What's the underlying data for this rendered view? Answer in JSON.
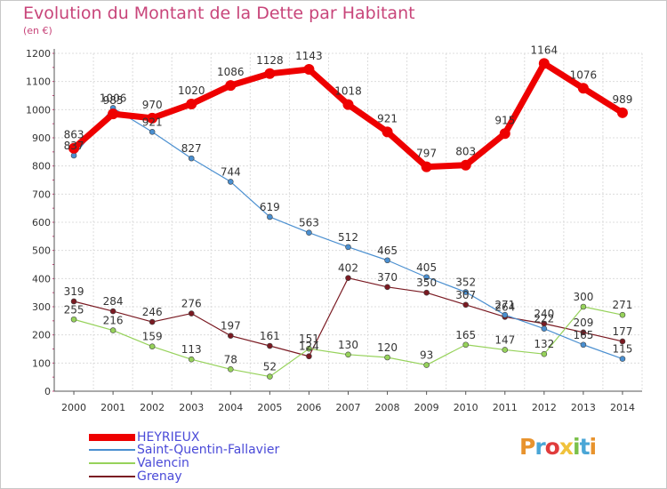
{
  "header": {
    "title": "Evolution du Montant de la Dette par Habitant",
    "subtitle": "(en €)"
  },
  "logo": {
    "text": "Proxiti",
    "colors": [
      "#e8932d",
      "#4aa6d6",
      "#e03c3c",
      "#f0c23b",
      "#7bc04a",
      "#4aa6d6",
      "#e8932d"
    ]
  },
  "chart_data": {
    "type": "line",
    "x": [
      "2000",
      "2001",
      "2002",
      "2003",
      "2004",
      "2005",
      "2006",
      "2007",
      "2008",
      "2009",
      "2010",
      "2011",
      "2012",
      "2013",
      "2014"
    ],
    "yticks": [
      "0",
      "100",
      "200",
      "300",
      "400",
      "500",
      "600",
      "700",
      "800",
      "900",
      "1000",
      "1100",
      "1200"
    ],
    "ylim": [
      0,
      1200
    ],
    "grid": true,
    "legend_position": "bottom-left",
    "series": [
      {
        "name": "Grenay",
        "color": "#7a1a22",
        "values": [
          319,
          284,
          246,
          276,
          197,
          161,
          124,
          402,
          370,
          350,
          307,
          264,
          240,
          209,
          177
        ]
      },
      {
        "name": "Valencin",
        "color": "#96d25a",
        "values": [
          255,
          216,
          159,
          113,
          78,
          52,
          151,
          130,
          120,
          93,
          165,
          147,
          132,
          300,
          271
        ]
      },
      {
        "name": "Saint-Quentin-Fallavier",
        "color": "#4a8fd0",
        "values": [
          837,
          1006,
          921,
          827,
          744,
          619,
          563,
          512,
          465,
          405,
          352,
          271,
          222,
          165,
          115
        ]
      },
      {
        "name": "HEYRIEUX",
        "color": "#ee0000",
        "values": [
          863,
          985,
          970,
          1020,
          1086,
          1128,
          1143,
          1018,
          921,
          797,
          803,
          915,
          1164,
          1076,
          989
        ]
      }
    ],
    "labels": [
      [
        "319",
        "284",
        "246",
        "276",
        "197",
        "161",
        "124",
        "402",
        "370",
        "350",
        "307",
        "264",
        "240",
        "209",
        "177"
      ],
      [
        "255",
        "216",
        "159",
        "113",
        "78",
        "52",
        "151",
        "130",
        "120",
        "93",
        "165",
        "147",
        "132",
        "300",
        "271"
      ],
      [
        "837",
        "1006",
        "921",
        "827",
        "744",
        "619",
        "563",
        "512",
        "465",
        "405",
        "352",
        "271",
        "222",
        "165",
        "115"
      ],
      [
        "863",
        "985",
        "970",
        "1020",
        "1086",
        "1128",
        "1143",
        "1018",
        "921",
        "797",
        "803",
        "915",
        "1164",
        "1076",
        "989"
      ]
    ],
    "legend": [
      "HEYRIEUX",
      "Saint-Quentin-Fallavier",
      "Valencin",
      "Grenay"
    ]
  }
}
